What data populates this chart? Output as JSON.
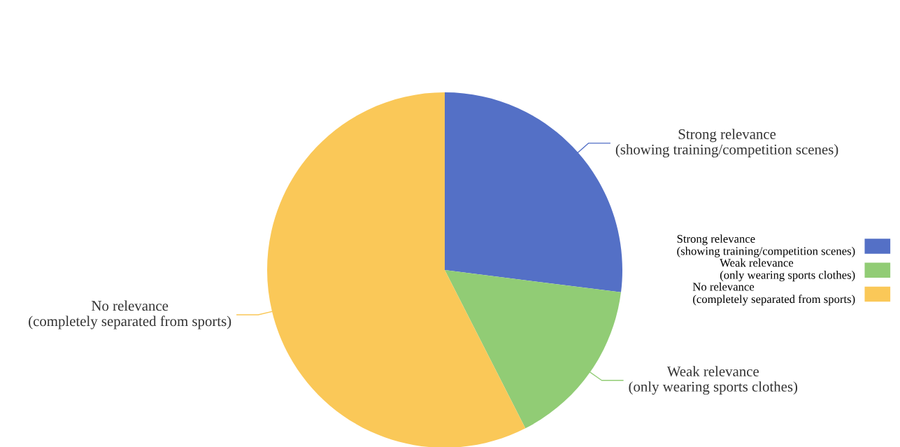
{
  "chart_data": {
    "type": "pie",
    "categories": [
      "Strong relevance\n(showing training/competition scenes)",
      "Weak relevance\n(only wearing sports clothes)",
      "No relevance\n(completely separated from sports)"
    ],
    "values": [
      27,
      15.5,
      57.5
    ],
    "colors": [
      "#5470c6",
      "#91cc75",
      "#fac858"
    ],
    "legend": "right"
  }
}
